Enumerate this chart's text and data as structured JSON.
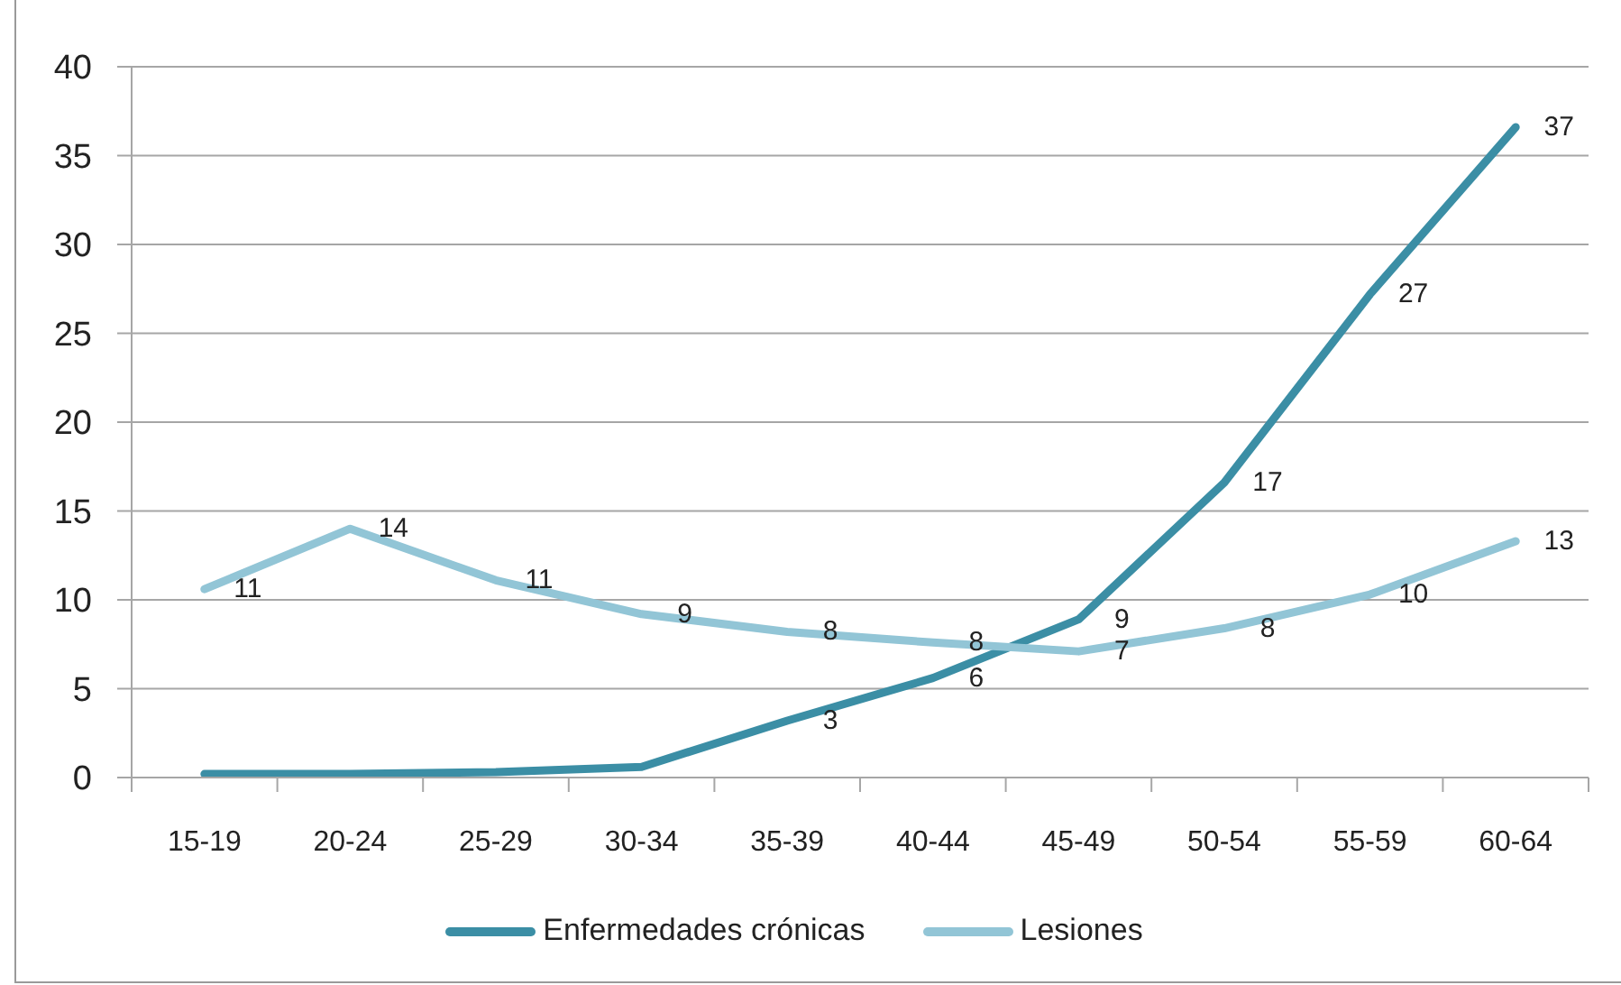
{
  "chart_data": {
    "type": "line",
    "categories": [
      "15-19",
      "20-24",
      "25-29",
      "30-34",
      "35-39",
      "40-44",
      "45-49",
      "50-54",
      "55-59",
      "60-64"
    ],
    "series": [
      {
        "name": "Enfermedades crónicas",
        "color": "#3b8ea5",
        "values": [
          0.2,
          0.2,
          0.3,
          0.6,
          3.2,
          5.6,
          8.9,
          16.6,
          27.2,
          36.6
        ],
        "value_labels": [
          null,
          null,
          null,
          null,
          "3",
          "6",
          "9",
          "17",
          "27",
          "37"
        ]
      },
      {
        "name": "Lesiones",
        "color": "#92c5d6",
        "values": [
          10.6,
          14.0,
          11.1,
          9.2,
          8.2,
          7.6,
          7.1,
          8.4,
          10.3,
          13.3
        ],
        "value_labels": [
          "11",
          "14",
          "11",
          "9",
          "8",
          "8",
          "7",
          "8",
          "10",
          "13"
        ]
      }
    ],
    "ylim": [
      0,
      40
    ],
    "yticks": [
      0,
      5,
      10,
      15,
      20,
      25,
      30,
      35,
      40
    ],
    "grid": "y",
    "legend": "bottom",
    "marker": "none",
    "line_style": "solid"
  }
}
